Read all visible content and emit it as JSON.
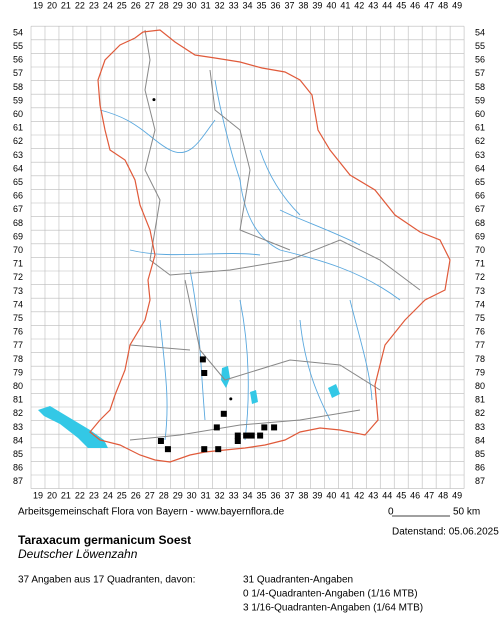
{
  "columns": [
    19,
    20,
    21,
    22,
    23,
    24,
    25,
    26,
    27,
    28,
    29,
    30,
    31,
    32,
    33,
    34,
    35,
    36,
    37,
    38,
    39,
    40,
    41,
    42,
    43,
    44,
    45,
    46,
    47,
    48,
    49
  ],
  "rows": [
    54,
    55,
    56,
    57,
    58,
    59,
    60,
    61,
    62,
    63,
    64,
    65,
    66,
    67,
    68,
    69,
    70,
    71,
    72,
    73,
    74,
    75,
    76,
    77,
    78,
    79,
    80,
    81,
    82,
    83,
    84,
    85,
    86,
    87
  ],
  "squares": [
    [
      30.8,
      78.0
    ],
    [
      30.9,
      79.0
    ],
    [
      32.3,
      82.0
    ],
    [
      31.8,
      83.0
    ],
    [
      35.2,
      83.0
    ],
    [
      35.9,
      83.0
    ],
    [
      33.3,
      83.6
    ],
    [
      33.9,
      83.6
    ],
    [
      34.3,
      83.6
    ],
    [
      34.9,
      83.6
    ],
    [
      33.3,
      84.0
    ],
    [
      27.8,
      84.0
    ],
    [
      28.3,
      84.6
    ],
    [
      30.9,
      84.6
    ],
    [
      31.9,
      84.6
    ]
  ],
  "dots": [
    [
      27.3,
      58.9
    ],
    [
      32.8,
      80.9
    ]
  ],
  "credit": "Arbeitsgemeinschaft Flora von Bayern - www.bayernflora.de",
  "scale": {
    "start": "0",
    "end": "50 km"
  },
  "date": "Datenstand: 05.06.2025",
  "species": {
    "name": "Taraxacum germanicum Soest",
    "common": "Deutscher Löwenzahn"
  },
  "summary": "37 Angaben aus 17 Quadranten, davon:",
  "counts": [
    "31 Quadranten-Angaben",
    "0 1/4-Quadranten-Angaben (1/16 MTB)",
    "3 1/16-Quadranten-Angaben (1/64 MTB)"
  ]
}
